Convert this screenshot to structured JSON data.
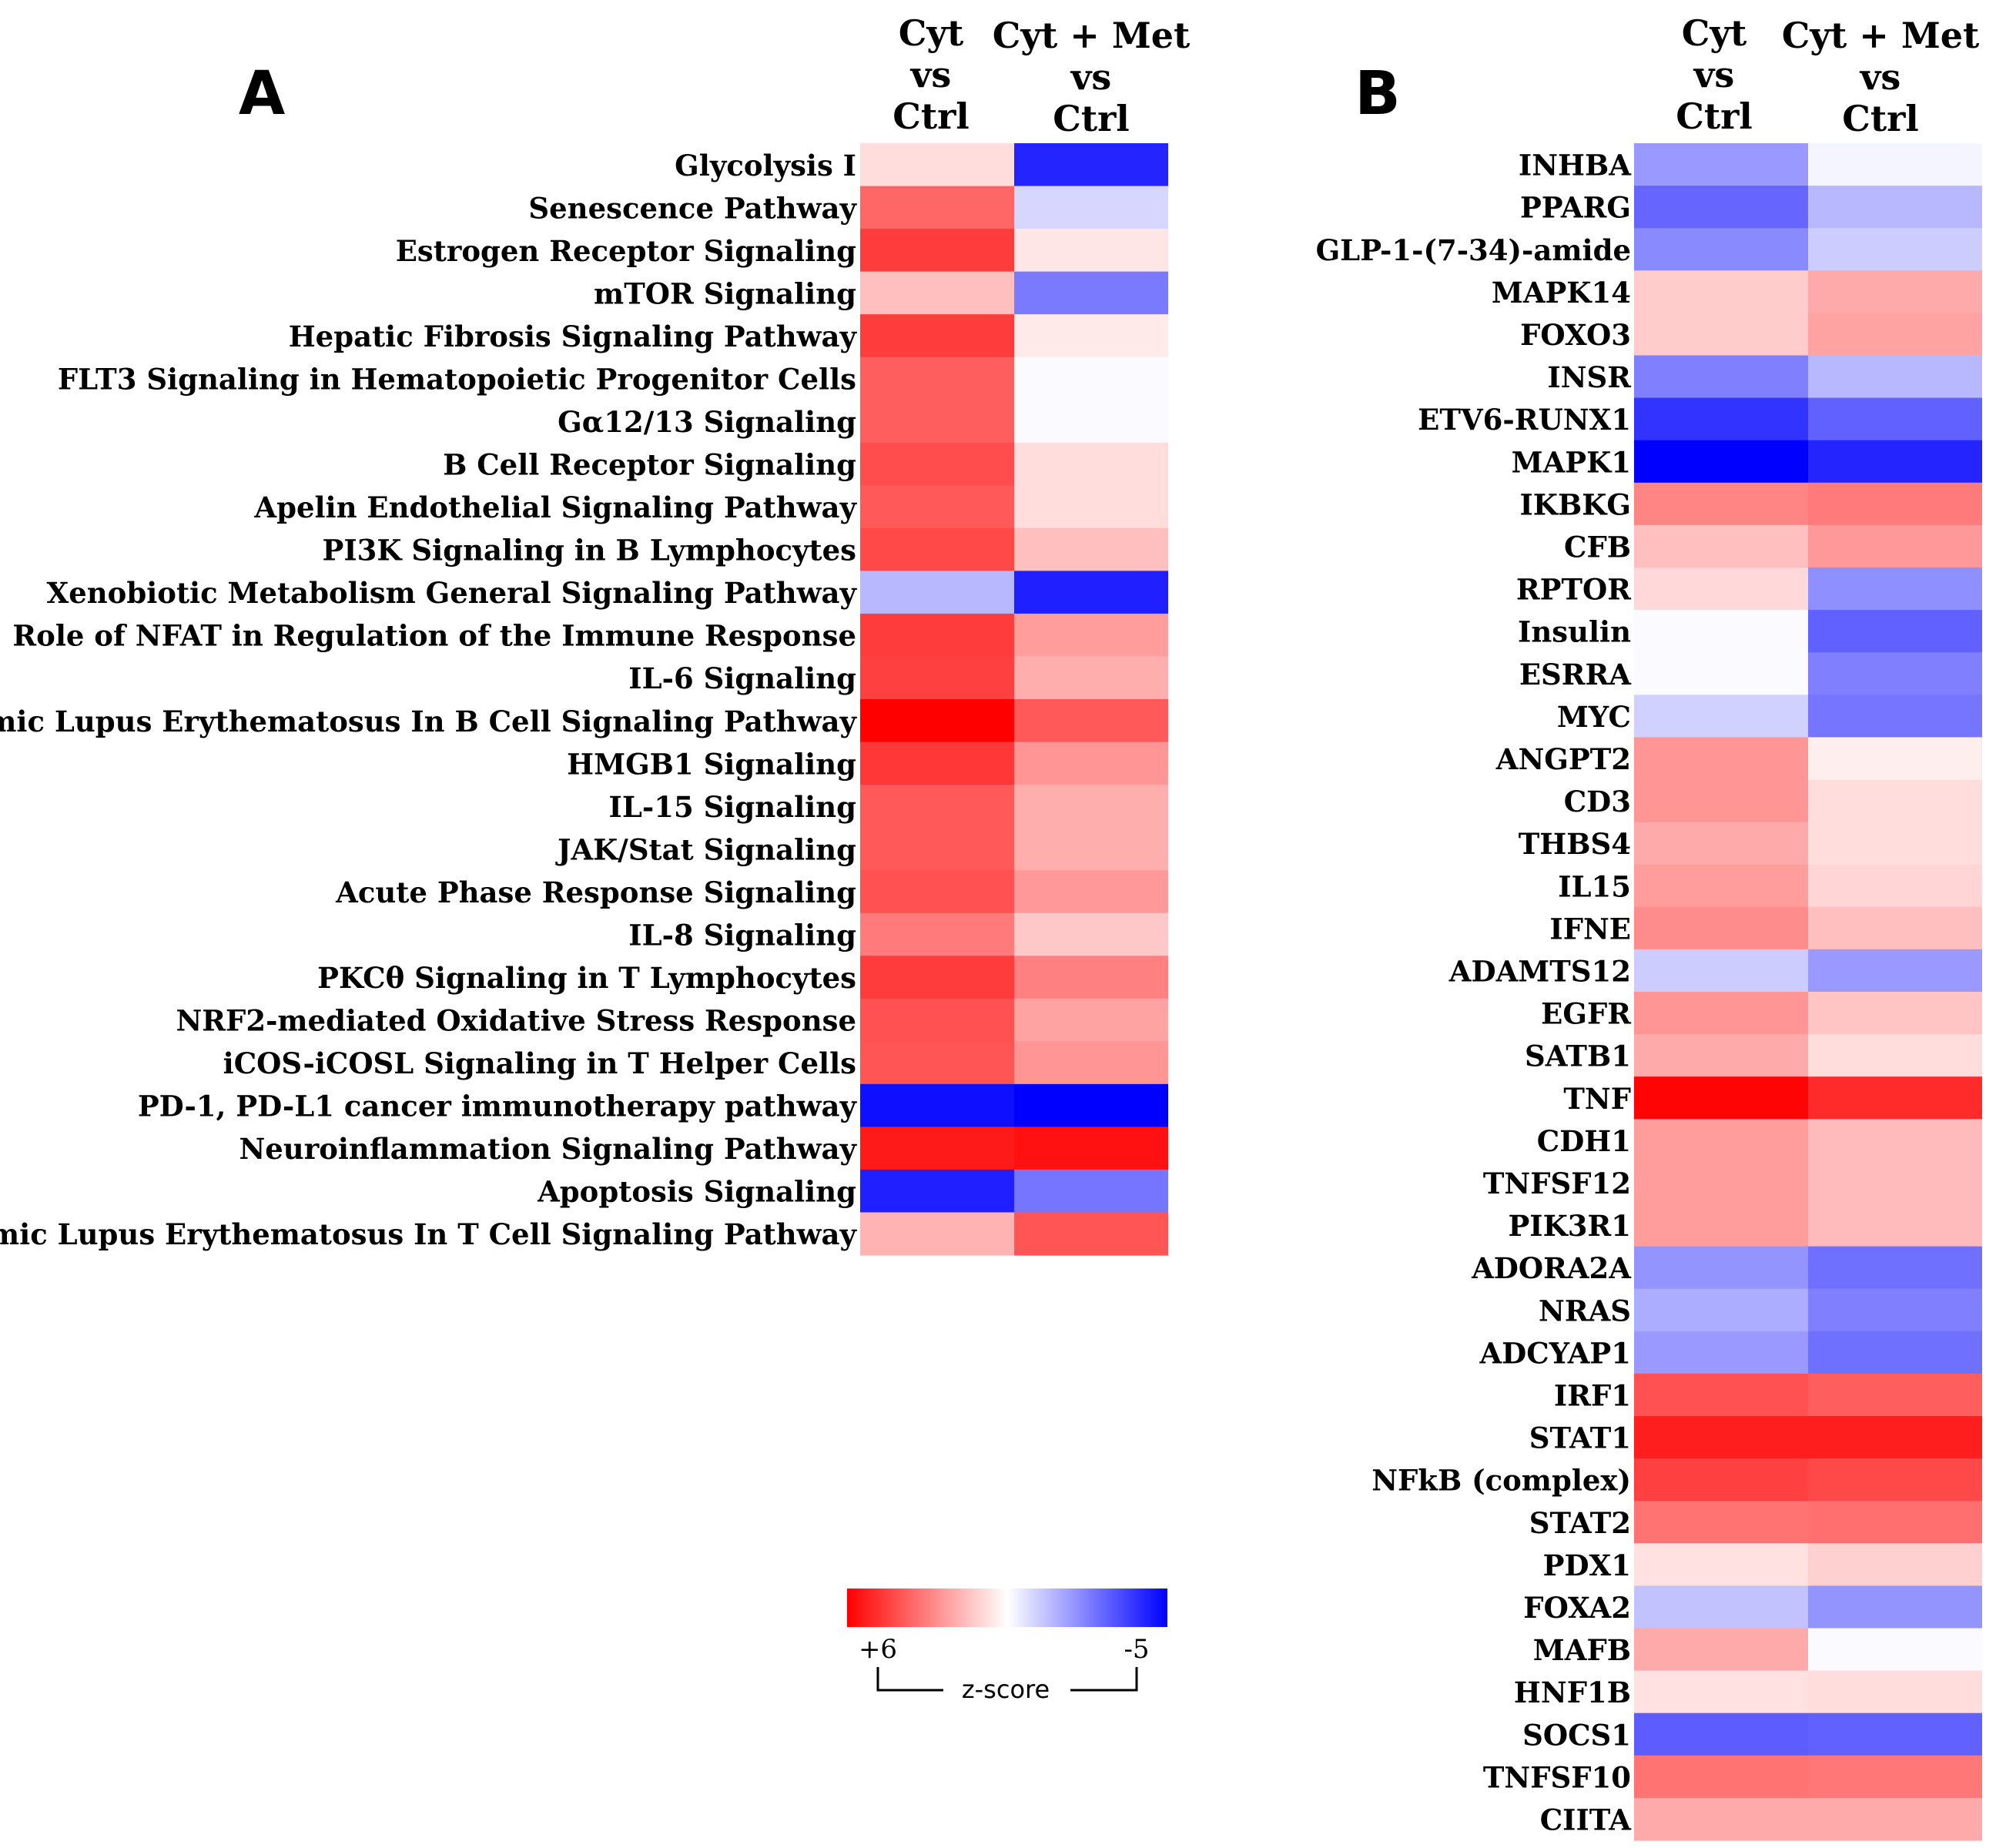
{
  "chart_data": [
    {
      "type": "heatmap",
      "panel": "A",
      "columns": [
        [
          "Cyt",
          "vs",
          "Ctrl"
        ],
        [
          "Cyt + Met",
          "vs",
          "Ctrl"
        ]
      ],
      "rows": [
        "Glycolysis I",
        "Senescence Pathway",
        "Estrogen Receptor Signaling",
        "mTOR Signaling",
        "Hepatic Fibrosis Signaling Pathway",
        "FLT3 Signaling in Hematopoietic Progenitor Cells",
        "Gα12/13 Signaling",
        "B Cell Receptor Signaling",
        "Apelin Endothelial Signaling Pathway",
        "PI3K Signaling in B Lymphocytes",
        "Xenobiotic Metabolism General Signaling Pathway",
        "Role of NFAT in Regulation of the Immune Response",
        "IL-6 Signaling",
        "Systemic Lupus Erythematosus In B Cell Signaling Pathway",
        "HMGB1 Signaling",
        "IL-15 Signaling",
        "JAK/Stat Signaling",
        "Acute Phase Response Signaling",
        "IL-8 Signaling",
        "PKCθ Signaling in T Lymphocytes",
        "NRF2-mediated Oxidative Stress Response",
        "iCOS-iCOSL Signaling in T Helper Cells",
        "PD-1, PD-L1 cancer immunotherapy pathway",
        "Neuroinflammation Signaling Pathway",
        "Apoptosis Signaling",
        "Systemic Lupus Erythematosus In T Cell Signaling Pathway"
      ],
      "values": [
        [
          0.8,
          -4.3
        ],
        [
          3.6,
          -0.8
        ],
        [
          4.6,
          0.6
        ],
        [
          1.5,
          -2.6
        ],
        [
          4.6,
          0.5
        ],
        [
          3.8,
          -0.1
        ],
        [
          3.8,
          -0.1
        ],
        [
          4.2,
          0.8
        ],
        [
          3.9,
          0.8
        ],
        [
          4.3,
          1.5
        ],
        [
          -1.4,
          -4.4
        ],
        [
          4.6,
          2.3
        ],
        [
          4.5,
          1.9
        ],
        [
          6.0,
          3.9
        ],
        [
          4.7,
          2.5
        ],
        [
          3.9,
          1.9
        ],
        [
          3.9,
          1.9
        ],
        [
          4.1,
          2.4
        ],
        [
          3.1,
          1.3
        ],
        [
          4.6,
          3.0
        ],
        [
          4.1,
          2.2
        ],
        [
          4.0,
          2.5
        ],
        [
          -4.7,
          -5.0
        ],
        [
          5.4,
          5.6
        ],
        [
          -4.4,
          -2.7
        ],
        [
          1.8,
          4.0
        ]
      ],
      "scale": {
        "min": -5,
        "max": 6,
        "neg_color": "#0000ff",
        "mid_color": "#ffffff",
        "pos_color": "#ff0000"
      }
    },
    {
      "type": "heatmap",
      "panel": "B",
      "columns": [
        [
          "Cyt",
          "vs",
          "Ctrl"
        ],
        [
          "Cyt + Met",
          "vs",
          "Ctrl"
        ]
      ],
      "rows": [
        "INHBA",
        "PPARG",
        "GLP-1-(7-34)-amide",
        "MAPK14",
        "FOXO3",
        "INSR",
        "ETV6-RUNX1",
        "MAPK1",
        "IKBKG",
        "CFB",
        "RPTOR",
        "Insulin",
        "ESRRA",
        "MYC",
        "ANGPT2",
        "CD3",
        "THBS4",
        "IL15",
        "IFNE",
        "ADAMTS12",
        "EGFR",
        "SATB1",
        "TNF",
        "CDH1",
        "TNFSF12",
        "PIK3R1",
        "ADORA2A",
        "NRAS",
        "ADCYAP1",
        "IRF1",
        "STAT1",
        "NFkB (complex)",
        "STAT2",
        "PDX1",
        "FOXA2",
        "MAFB",
        "HNF1B",
        "SOCS1",
        "TNFSF10",
        "CIITA"
      ],
      "values": [
        [
          -2.0,
          -0.2
        ],
        [
          -3.0,
          -1.4
        ],
        [
          -2.3,
          -1.0
        ],
        [
          1.2,
          2.0
        ],
        [
          1.2,
          2.2
        ],
        [
          -2.5,
          -1.4
        ],
        [
          -4.0,
          -3.1
        ],
        [
          -5.0,
          -4.3
        ],
        [
          2.9,
          3.1
        ],
        [
          1.5,
          2.4
        ],
        [
          0.9,
          -2.2
        ],
        [
          -0.1,
          -3.1
        ],
        [
          -0.1,
          -2.5
        ],
        [
          -0.9,
          -2.7
        ],
        [
          2.5,
          0.4
        ],
        [
          2.5,
          0.8
        ],
        [
          2.0,
          0.8
        ],
        [
          2.3,
          1.0
        ],
        [
          2.7,
          1.5
        ],
        [
          -1.0,
          -2.0
        ],
        [
          2.5,
          1.4
        ],
        [
          2.0,
          0.8
        ],
        [
          5.9,
          5.0
        ],
        [
          2.3,
          1.6
        ],
        [
          2.3,
          1.6
        ],
        [
          2.3,
          1.6
        ],
        [
          -2.1,
          -2.8
        ],
        [
          -1.6,
          -2.5
        ],
        [
          -2.0,
          -2.8
        ],
        [
          4.1,
          3.8
        ],
        [
          5.3,
          5.3
        ],
        [
          4.5,
          4.3
        ],
        [
          3.3,
          3.4
        ],
        [
          0.7,
          1.1
        ],
        [
          -1.2,
          -2.1
        ],
        [
          2.0,
          -0.1
        ],
        [
          0.7,
          0.8
        ],
        [
          -3.2,
          -3.1
        ],
        [
          3.3,
          3.2
        ],
        [
          2.0,
          2.0
        ]
      ],
      "scale": {
        "min": -5,
        "max": 6,
        "neg_color": "#0000ff",
        "mid_color": "#ffffff",
        "pos_color": "#ff0000"
      }
    }
  ],
  "legend": {
    "left_label": "+6",
    "right_label": "-5",
    "title": "z-score",
    "gradient": [
      "#ff0000",
      "#ffffff",
      "#0000ff"
    ]
  }
}
